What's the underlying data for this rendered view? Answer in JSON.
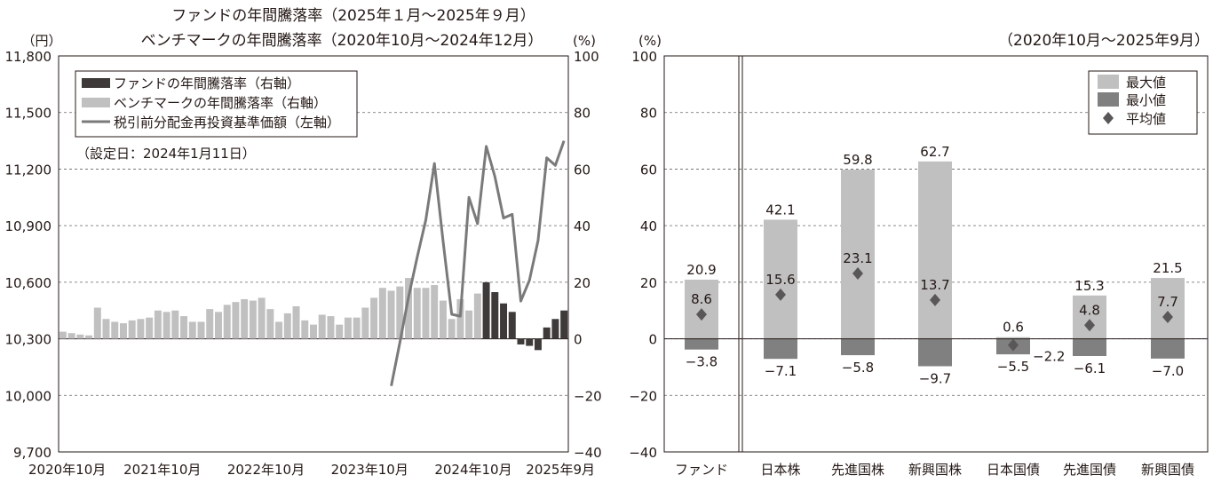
{
  "colors": {
    "fund_bar": "#3e3a39",
    "benchmark_bar": "#c0c0c0",
    "nav_line": "#7a7a7a",
    "max_bar": "#c0c0c0",
    "min_bar": "#808080",
    "avg_marker": "#595757",
    "text": "#231815",
    "grid": "#666666"
  },
  "chart_data": [
    {
      "type": "bar",
      "title": "ファンドの年間騰落率（2025年１月～2025年９月）",
      "subtitle": "ベンチマークの年間騰落率（2020年10月～2024年12月）",
      "y_left_unit": "（円）",
      "y_right_unit": "(%)",
      "y_left_ticks": [
        "11,800",
        "11,500",
        "11,200",
        "10,900",
        "10,600",
        "10,300",
        "10,000",
        "9,700"
      ],
      "y_right_ticks": [
        "100",
        "80",
        "60",
        "40",
        "20",
        "0",
        "−20",
        "−40"
      ],
      "y_left_lim": [
        9700,
        11800
      ],
      "y_right_lim": [
        -40,
        100
      ],
      "x_tick_labels": [
        "2020年10月",
        "2021年10月",
        "2022年10月",
        "2023年10月",
        "2024年10月",
        "2025年9月"
      ],
      "legend": [
        {
          "name": "ファンドの年間騰落率（右軸）",
          "kind": "bar"
        },
        {
          "name": "ベンチマークの年間騰落率（右軸）",
          "kind": "bar"
        },
        {
          "name": "税引前分配金再投資基準価額（左軸）",
          "kind": "line"
        }
      ],
      "note": "（設定日：2024年1月11日）",
      "grid": "dashed horizontal",
      "benchmark_monthly_return": [
        2.5,
        2.0,
        1.5,
        1.2,
        11.0,
        7.0,
        6.0,
        5.5,
        6.5,
        7.0,
        7.5,
        10.0,
        9.5,
        10.0,
        8.0,
        6.0,
        6.0,
        10.5,
        9.5,
        12.0,
        13.0,
        14.0,
        13.5,
        14.5,
        10.5,
        6.0,
        9.0,
        11.5,
        6.5,
        5.0,
        8.5,
        8.0,
        5.0,
        7.5,
        7.5,
        11.0,
        14.5,
        18.0,
        17.0,
        18.5,
        21.5,
        18.0,
        18.0,
        19.0,
        13.5,
        7.0,
        14.0,
        10.0,
        16.0
      ],
      "fund_monthly_return": [
        20.0,
        16.5,
        12.5,
        9.5,
        -2.0,
        -2.5,
        -4.0,
        4.0,
        7.0,
        10.0
      ],
      "nav_series": [
        {
          "x": "2024年1月",
          "y": 10050
        },
        {
          "x": "2024年2月",
          "y": 10280
        },
        {
          "x": "2024年3月",
          "y": 10520
        },
        {
          "x": "2024年4月",
          "y": 10730
        },
        {
          "x": "2024年5月",
          "y": 10930
        },
        {
          "x": "2024年6月",
          "y": 11230
        },
        {
          "x": "2024年7月",
          "y": 10820
        },
        {
          "x": "2024年8月",
          "y": 10430
        },
        {
          "x": "2024年9月",
          "y": 10420
        },
        {
          "x": "2024年10月",
          "y": 11050
        },
        {
          "x": "2024年11月",
          "y": 10910
        },
        {
          "x": "2024年12月",
          "y": 11320
        },
        {
          "x": "2025年1月",
          "y": 11160
        },
        {
          "x": "2025年2月",
          "y": 10940
        },
        {
          "x": "2025年3月",
          "y": 10960
        },
        {
          "x": "2025年4月",
          "y": 10500
        },
        {
          "x": "2025年5月",
          "y": 10610
        },
        {
          "x": "2025年6月",
          "y": 10820
        },
        {
          "x": "2025年7月",
          "y": 11260
        },
        {
          "x": "2025年8月",
          "y": 11220
        },
        {
          "x": "2025年9月",
          "y": 11350
        }
      ]
    },
    {
      "type": "bar",
      "title": "（2020年10月～2025年9月）",
      "y_unit": "(%)",
      "y_ticks": [
        "100",
        "80",
        "60",
        "40",
        "20",
        "0",
        "−20",
        "−40"
      ],
      "ylim": [
        -40,
        100
      ],
      "categories": [
        "ファンド",
        "日本株",
        "先進国株",
        "新興国株",
        "日本国債",
        "先進国債",
        "新興国債"
      ],
      "legend": [
        {
          "name": "最大値",
          "kind": "max"
        },
        {
          "name": "最小値",
          "kind": "min"
        },
        {
          "name": "平均値",
          "kind": "avg"
        }
      ],
      "max_values": [
        20.9,
        42.1,
        59.8,
        62.7,
        0.6,
        15.3,
        21.5
      ],
      "min_values": [
        -3.8,
        -7.1,
        -5.8,
        -9.7,
        -5.5,
        -6.1,
        -7.0
      ],
      "avg_values": [
        8.6,
        15.6,
        23.1,
        13.7,
        -2.2,
        4.8,
        7.7
      ],
      "max_labels": [
        "20.9",
        "42.1",
        "59.8",
        "62.7",
        "0.6",
        "15.3",
        "21.5"
      ],
      "min_labels": [
        "−3.8",
        "−7.1",
        "−5.8",
        "−9.7",
        "−5.5",
        "−6.1",
        "−7.0"
      ],
      "avg_labels": [
        "8.6",
        "15.6",
        "23.1",
        "13.7",
        "−2.2",
        "4.8",
        "7.7"
      ],
      "grid": "dashed horizontal"
    }
  ]
}
